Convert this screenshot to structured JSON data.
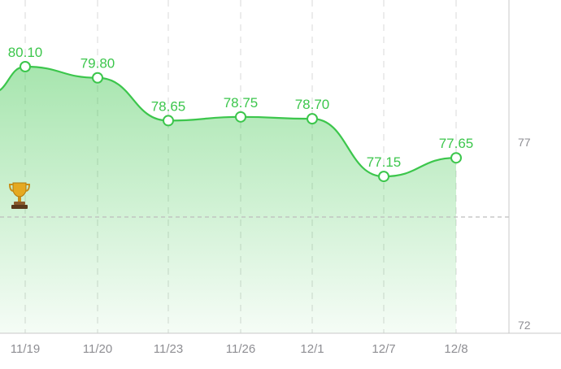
{
  "chart_data": {
    "type": "area",
    "categories": [
      "11/19",
      "11/20",
      "11/23",
      "11/26",
      "12/1",
      "12/7",
      "12/8"
    ],
    "values": [
      80.1,
      79.8,
      78.65,
      78.75,
      78.7,
      77.15,
      77.65
    ],
    "value_labels": [
      "80.10",
      "79.80",
      "78.65",
      "78.75",
      "78.70",
      "77.15",
      "77.65"
    ],
    "y_ticks": [
      "77",
      "72"
    ],
    "reference_marker": "trophy-icon",
    "colors": {
      "line": "#3cc64c",
      "fill": "#3cc64c",
      "grid": "#d8d8d8",
      "tick_text": "#8e8e93"
    },
    "grid": true
  }
}
